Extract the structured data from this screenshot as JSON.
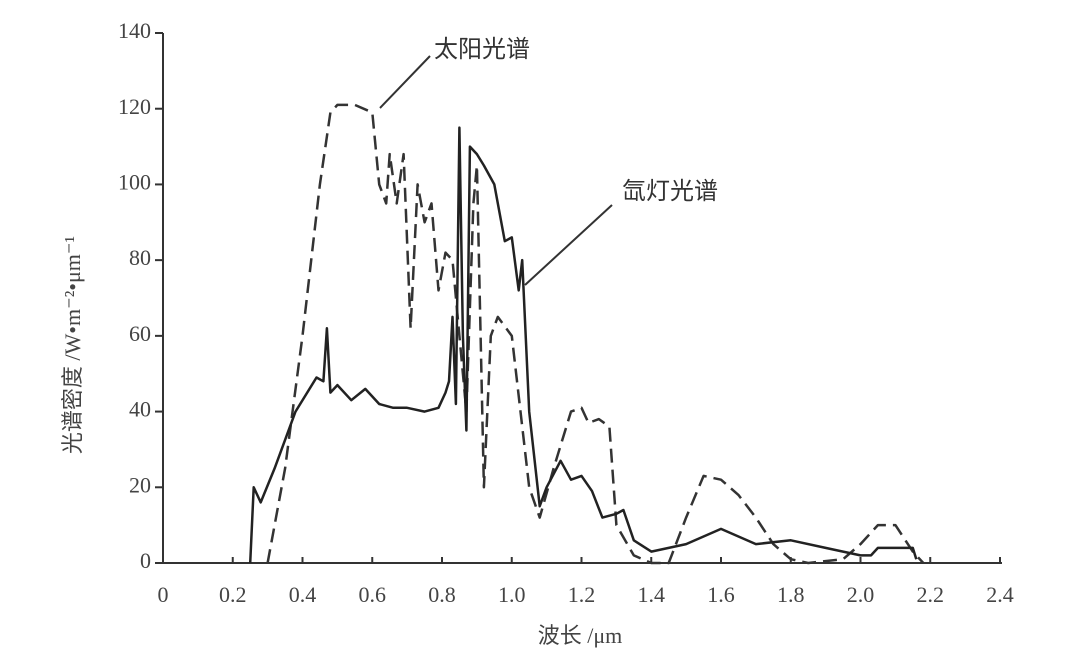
{
  "chart_data": {
    "type": "line",
    "xlabel": "波长 /μm",
    "ylabel": "光谱密度 /W•m⁻²•μm⁻¹",
    "xlim": [
      0,
      2.4
    ],
    "ylim": [
      0,
      140
    ],
    "xticks": [
      0,
      0.2,
      0.4,
      0.6,
      0.8,
      {
        "value": 1,
        "label": "1.0"
      },
      1.2,
      1.4,
      1.6,
      1.8,
      {
        "value": 2,
        "label": "2.0"
      },
      2.2,
      2.4
    ],
    "yticks": [
      0,
      20,
      40,
      60,
      80,
      100,
      120,
      140
    ],
    "series": [
      {
        "name": "太阳光谱",
        "color": "#333333",
        "line_style": "dashed",
        "x": [
          0.3,
          0.35,
          0.4,
          0.45,
          0.48,
          0.5,
          0.55,
          0.6,
          0.62,
          0.64,
          0.65,
          0.67,
          0.69,
          0.71,
          0.73,
          0.75,
          0.77,
          0.79,
          0.81,
          0.83,
          0.85,
          0.87,
          0.89,
          0.9,
          0.92,
          0.94,
          0.96,
          1.0,
          1.05,
          1.08,
          1.12,
          1.17,
          1.2,
          1.22,
          1.25,
          1.28,
          1.3,
          1.35,
          1.4,
          1.45,
          1.5,
          1.55,
          1.6,
          1.65,
          1.7,
          1.75,
          1.8,
          1.85,
          1.95,
          2.0,
          2.05,
          2.1,
          2.15,
          2.18
        ],
        "values": [
          0,
          25,
          60,
          100,
          119,
          121,
          121,
          119,
          100,
          95,
          108,
          95,
          108,
          62,
          100,
          90,
          95,
          72,
          82,
          80,
          60,
          40,
          95,
          105,
          20,
          60,
          65,
          60,
          20,
          12,
          25,
          40,
          41,
          37,
          38,
          36,
          10,
          2,
          0,
          0,
          12,
          23,
          22,
          18,
          12,
          5,
          1,
          0,
          1,
          5,
          10,
          10,
          3,
          0
        ]
      },
      {
        "name": "氙灯光谱",
        "color": "#222222",
        "line_style": "solid",
        "x": [
          0.25,
          0.26,
          0.28,
          0.32,
          0.38,
          0.44,
          0.46,
          0.47,
          0.48,
          0.5,
          0.54,
          0.58,
          0.62,
          0.66,
          0.7,
          0.75,
          0.79,
          0.81,
          0.82,
          0.83,
          0.84,
          0.85,
          0.86,
          0.87,
          0.88,
          0.9,
          0.92,
          0.95,
          0.98,
          1.0,
          1.02,
          1.03,
          1.05,
          1.08,
          1.1,
          1.14,
          1.17,
          1.2,
          1.23,
          1.26,
          1.3,
          1.32,
          1.35,
          1.4,
          1.5,
          1.6,
          1.7,
          1.8,
          1.9,
          2.0,
          2.03,
          2.05,
          2.15,
          2.16
        ],
        "values": [
          0,
          20,
          16,
          25,
          40,
          49,
          48,
          62,
          45,
          47,
          43,
          46,
          42,
          41,
          41,
          40,
          41,
          45,
          48,
          65,
          42,
          115,
          60,
          35,
          110,
          108,
          105,
          100,
          85,
          86,
          72,
          80,
          40,
          15,
          20,
          27,
          22,
          23,
          19,
          12,
          13,
          14,
          6,
          3,
          5,
          9,
          5,
          6,
          4,
          2,
          2,
          4,
          4,
          1
        ]
      }
    ]
  }
}
